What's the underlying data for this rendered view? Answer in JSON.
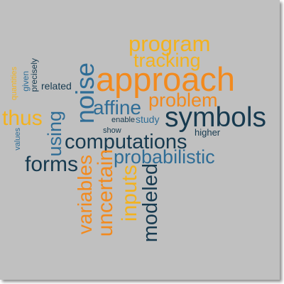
{
  "colors": {
    "background": "#c0c0c0",
    "dark_navy": "#173a4f",
    "teal_blue": "#2f6d96",
    "orange": "#f28a1e",
    "gold": "#f3b21e"
  },
  "words": {
    "program": "program",
    "tracking": "tracking",
    "approach": "approach",
    "noise": "noise",
    "problem": "problem",
    "affine": "affine",
    "symbols": "symbols",
    "related": "related",
    "precisely": "precisely",
    "given": "given",
    "quantities": "quantities",
    "thus": "thus",
    "using": "using",
    "enable": "enable",
    "study": "study",
    "show": "show",
    "higher": "higher",
    "values": "values",
    "computations": "computations",
    "forms": "forms",
    "probabilistic": "probabilistic",
    "variables": "variables",
    "uncertain": "uncertain",
    "inputs": "inputs",
    "modeled": "modeled"
  }
}
